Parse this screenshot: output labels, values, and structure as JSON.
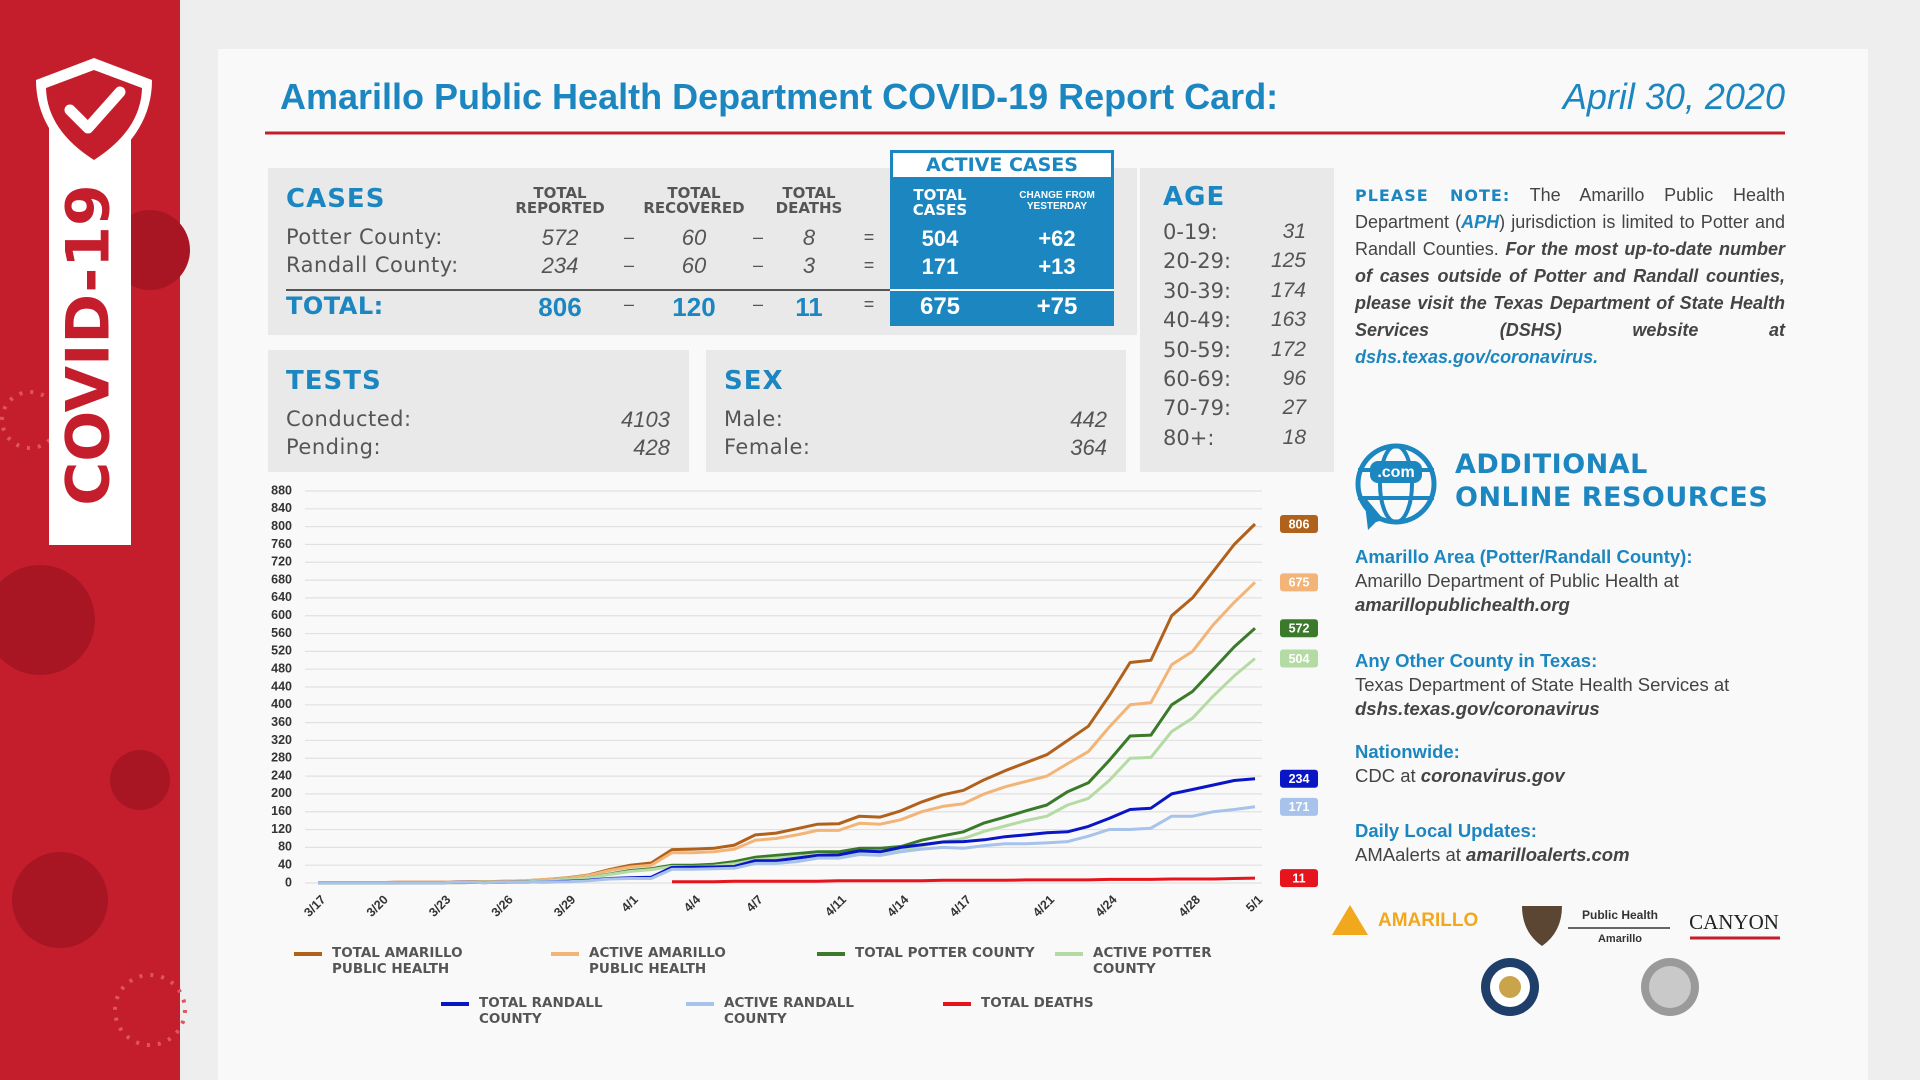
{
  "sidebar": {
    "label": "COVID-19"
  },
  "header": {
    "title": "Amarillo Public Health Department COVID-19 Report Card:",
    "date": "April 30, 2020"
  },
  "cases": {
    "title": "CASES",
    "columns": [
      "TOTAL REPORTED",
      "TOTAL RECOVERED",
      "TOTAL DEATHS"
    ],
    "active_title": "ACTIVE CASES",
    "active_columns": [
      "TOTAL CASES",
      "CHANGE FROM YESTERDAY"
    ],
    "operators": [
      "–",
      "–",
      "="
    ],
    "rows": [
      [
        "Potter County:",
        572,
        60,
        8,
        504,
        "+62"
      ],
      [
        "Randall County:",
        234,
        60,
        3,
        171,
        "+13"
      ],
      [
        "TOTAL:",
        806,
        120,
        11,
        675,
        "+75"
      ]
    ]
  },
  "tests": {
    "title": "TESTS",
    "rows": [
      [
        "Conducted:",
        4103
      ],
      [
        "Pending:",
        428
      ]
    ]
  },
  "sex": {
    "title": "SEX",
    "rows": [
      [
        "Male:",
        442
      ],
      [
        "Female:",
        364
      ]
    ]
  },
  "age": {
    "title": "AGE",
    "rows": [
      [
        "0-19:",
        31
      ],
      [
        "20-29:",
        125
      ],
      [
        "30-39:",
        174
      ],
      [
        "40-49:",
        163
      ],
      [
        "50-59:",
        172
      ],
      [
        "60-69:",
        96
      ],
      [
        "70-79:",
        27
      ],
      [
        "80+:",
        18
      ]
    ]
  },
  "note": {
    "label": "PLEASE NOTE:",
    "text1": "The Amarillo Public Health Department (",
    "abbr": "APH",
    "text2": ") jurisdiction is limited to Potter and Randall Counties.",
    "emphasis": "For the most up-to-date number of cases outside of Potter and Randall counties, please visit the Texas Department of State Health Services (DSHS) website at",
    "link": "dshs.texas.gov/coronavirus."
  },
  "resources": {
    "icon": ".com",
    "title": [
      "ADDITIONAL",
      "ONLINE RESOURCES"
    ],
    "items": [
      {
        "heading": "Amarillo Area (Potter/Randall County):",
        "text": "Amarillo Department of Public Health at",
        "link": "amarillopublichealth.org"
      },
      {
        "heading": "Any Other County in Texas:",
        "text": "Texas Department of State Health Services at",
        "link": "dshs.texas.gov/coronavirus"
      },
      {
        "heading": "Nationwide:",
        "text": "CDC at",
        "link": "coronavirus.gov"
      },
      {
        "heading": "Daily Local Updates:",
        "text": "AMAalerts at",
        "link": "amarilloalerts.com"
      }
    ]
  },
  "logos": {
    "amarillo": "AMARILLO",
    "public_health": "Public Health",
    "public_health_city": "Amarillo",
    "canyon": "CANYON"
  },
  "chart_data": {
    "type": "line",
    "categories": [
      "3/17",
      null,
      null,
      "3/20",
      null,
      null,
      "3/23",
      null,
      null,
      "3/26",
      null,
      null,
      "3/29",
      null,
      null,
      "4/1",
      null,
      null,
      "4/4",
      null,
      null,
      "4/7",
      null,
      null,
      null,
      "4/11",
      null,
      null,
      "4/14",
      null,
      null,
      "4/17",
      null,
      null,
      null,
      "4/21",
      null,
      null,
      "4/24",
      null,
      null,
      null,
      "4/28",
      null,
      null,
      "5/1"
    ],
    "ylim": [
      0,
      880
    ],
    "yticks": [
      0,
      40,
      80,
      120,
      160,
      200,
      240,
      280,
      320,
      360,
      400,
      440,
      480,
      520,
      560,
      600,
      640,
      680,
      720,
      760,
      800,
      840,
      880
    ],
    "grid": true,
    "legend": "bottom",
    "series": [
      {
        "name": "TOTAL AMARILLO PUBLIC HEALTH",
        "color": "#b0621c",
        "values": [
          1,
          1,
          1,
          1,
          2,
          2,
          2,
          3,
          3,
          4,
          5,
          8,
          12,
          18,
          30,
          40,
          45,
          75,
          76,
          78,
          85,
          108,
          112,
          122,
          132,
          133,
          150,
          148,
          162,
          182,
          198,
          208,
          232,
          252,
          270,
          288,
          320,
          352,
          420,
          495,
          500,
          600,
          640,
          700,
          760,
          806
        ]
      },
      {
        "name": "ACTIVE AMARILLO PUBLIC HEALTH",
        "color": "#f2b477",
        "values": [
          1,
          1,
          1,
          1,
          2,
          2,
          2,
          3,
          3,
          4,
          5,
          8,
          11,
          17,
          28,
          36,
          40,
          68,
          68,
          70,
          76,
          96,
          100,
          108,
          118,
          118,
          134,
          132,
          142,
          160,
          172,
          178,
          200,
          216,
          228,
          240,
          268,
          295,
          350,
          400,
          405,
          490,
          520,
          580,
          630,
          675
        ]
      },
      {
        "name": "TOTAL POTTER COUNTY",
        "color": "#3b7a2a",
        "values": [
          0,
          0,
          0,
          0,
          1,
          1,
          1,
          1,
          2,
          2,
          3,
          5,
          8,
          12,
          20,
          28,
          32,
          40,
          40,
          42,
          48,
          58,
          62,
          66,
          70,
          70,
          78,
          78,
          82,
          96,
          106,
          115,
          135,
          148,
          162,
          175,
          205,
          225,
          275,
          330,
          332,
          400,
          430,
          480,
          530,
          572
        ]
      },
      {
        "name": "ACTIVE POTTER COUNTY",
        "color": "#b4dba4",
        "values": [
          0,
          0,
          0,
          0,
          1,
          1,
          1,
          1,
          2,
          2,
          3,
          5,
          8,
          12,
          19,
          26,
          30,
          37,
          37,
          38,
          43,
          52,
          56,
          60,
          62,
          62,
          70,
          70,
          72,
          84,
          92,
          100,
          116,
          128,
          140,
          150,
          175,
          190,
          230,
          280,
          282,
          340,
          370,
          420,
          465,
          504
        ]
      },
      {
        "name": "TOTAL RANDALL COUNTY",
        "color": "#0a16c6",
        "values": [
          1,
          1,
          1,
          1,
          1,
          1,
          1,
          2,
          1,
          2,
          2,
          3,
          4,
          6,
          10,
          12,
          13,
          35,
          36,
          36,
          37,
          50,
          50,
          56,
          62,
          63,
          72,
          70,
          80,
          86,
          92,
          93,
          97,
          104,
          108,
          113,
          115,
          127,
          145,
          165,
          168,
          200,
          210,
          220,
          230,
          234
        ]
      },
      {
        "name": "ACTIVE RANDALL COUNTY",
        "color": "#a7c2eb",
        "values": [
          1,
          1,
          1,
          1,
          1,
          1,
          1,
          2,
          1,
          2,
          2,
          3,
          3,
          5,
          9,
          10,
          10,
          31,
          31,
          32,
          33,
          44,
          44,
          48,
          56,
          56,
          64,
          62,
          70,
          76,
          80,
          78,
          84,
          88,
          88,
          90,
          93,
          105,
          120,
          120,
          123,
          150,
          150,
          160,
          165,
          171
        ]
      },
      {
        "name": "TOTAL DEATHS",
        "color": "#e5141d",
        "values": [
          null,
          null,
          null,
          null,
          null,
          null,
          null,
          null,
          null,
          null,
          null,
          null,
          null,
          null,
          null,
          null,
          null,
          3,
          3,
          3,
          4,
          4,
          4,
          4,
          4,
          5,
          5,
          5,
          5,
          5,
          6,
          6,
          6,
          6,
          7,
          7,
          7,
          7,
          8,
          8,
          8,
          9,
          9,
          9,
          10,
          11
        ]
      }
    ]
  }
}
